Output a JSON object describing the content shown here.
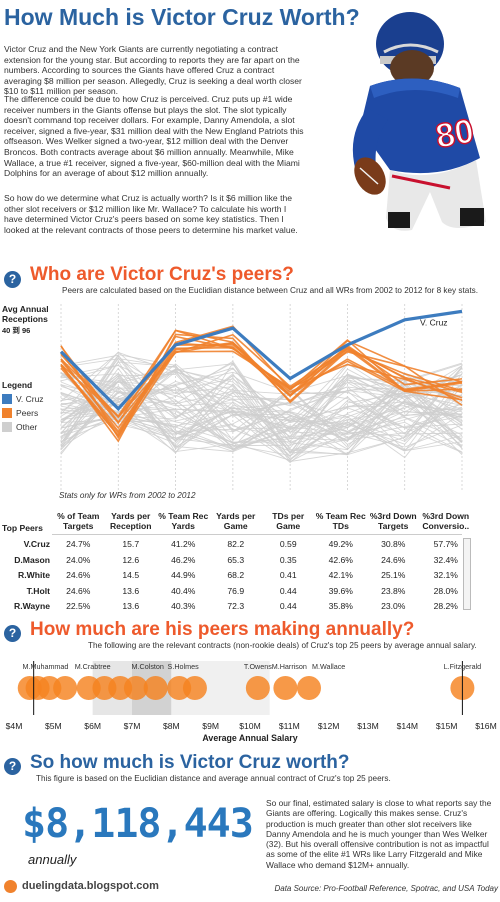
{
  "header": {
    "title": "How Much is Victor Cruz Worth?",
    "para1": "Victor Cruz and the New York Giants are currently negotiating a contract extension for the young star. But according to reports they are far apart on the numbers. According to sources the Giants have offered Cruz a contract averaging $8 million per season. Allegedly, Cruz is seeking a deal worth closer $10 to $11 million per season.",
    "para2": "The difference could be due to how Cruz is perceived. Cruz puts up #1 wide receiver numbers in the Giants offense but plays the slot. The slot typically doesn't command top receiver dollars. For example, Danny Amendola, a slot receiver, signed a five-year, $31 million deal with the New England Patriots this offseason. Wes Welker signed a two-year, $12 million deal with the Denver Broncos. Both contracts average about $6 million annually.  Meanwhile, Mike Wallace, a true #1 receiver, signed a five-year, $60-million deal with the Miami Dolphins for an average of about $12 million annually.",
    "para3": "So how do we determine what Cruz is actually worth? Is it $6 million like the other slot receivers or $12 million like Mr. Wallace? To calculate his worth I have determined Victor Cruz's peers based on some key statistics. Then I looked at the relevant contracts of those peers to determine his market value.",
    "jersey_number": "80"
  },
  "section1": {
    "icon": "?",
    "title": "Who are Victor Cruz's peers?",
    "subtitle": "Peers are calculated based on the Euclidian distance between Cruz and all WRs from 2002 to 2012 for 8 key stats.",
    "ylabel": "Avg Annual Receptions",
    "ylabel_sub": "40 到 96",
    "legend_title": "Legend",
    "note": "Stats only for WRs from 2002 to 2012",
    "cruz_label": "V. Cruz"
  },
  "chart_data": [
    {
      "type": "line",
      "x": [
        "% of Team Targets",
        "Yards per Reception",
        "% Team Rec Yards",
        "Yards per Game",
        "TDs per Game",
        "% Team Rec TDs",
        "%3rd Down Targets",
        "%3rd Down Conversions"
      ],
      "series": [
        {
          "name": "V. Cruz",
          "color": "#3d7cbf",
          "values": [
            0.74,
            0.4,
            0.78,
            0.88,
            0.58,
            0.78,
            0.93,
            0.98
          ]
        },
        {
          "name": "Peers",
          "color": "#f0822d",
          "values": [
            0.7,
            0.28,
            0.8,
            0.82,
            0.48,
            0.74,
            0.58,
            0.5
          ]
        },
        {
          "name": "Other",
          "color": "#cfcfcf",
          "values": [
            0.4,
            0.45,
            0.4,
            0.42,
            0.25,
            0.4,
            0.38,
            0.4
          ]
        }
      ]
    },
    {
      "type": "table",
      "columns": [
        "% of Team Targets",
        "Yards per Reception",
        "% Team Rec Yards",
        "Yards per Game",
        "TDs per Game",
        "% Team Rec TDs",
        "%3rd Down Targets",
        "%3rd Down Conversio.."
      ],
      "row_header": "Top Peers",
      "rows": [
        {
          "name": "V.Cruz",
          "values": [
            "24.7%",
            "15.7",
            "41.2%",
            "82.2",
            "0.59",
            "49.2%",
            "30.8%",
            "57.7%"
          ]
        },
        {
          "name": "D.Mason",
          "values": [
            "24.0%",
            "12.6",
            "46.2%",
            "65.3",
            "0.35",
            "42.6%",
            "24.6%",
            "32.4%"
          ]
        },
        {
          "name": "R.White",
          "values": [
            "24.6%",
            "14.5",
            "44.9%",
            "68.2",
            "0.41",
            "42.1%",
            "25.1%",
            "32.1%"
          ]
        },
        {
          "name": "T.Holt",
          "values": [
            "24.6%",
            "13.6",
            "40.4%",
            "76.9",
            "0.44",
            "39.6%",
            "23.8%",
            "28.0%"
          ]
        },
        {
          "name": "R.Wayne",
          "values": [
            "22.5%",
            "13.6",
            "40.3%",
            "72.3",
            "0.44",
            "35.8%",
            "23.0%",
            "28.2%"
          ]
        }
      ]
    },
    {
      "type": "scatter",
      "title": "How much are his peers making annually?",
      "xlabel": "Average Annual Salary",
      "xlim": [
        4,
        16
      ],
      "x_ticks": [
        "$4M",
        "$5M",
        "$6M",
        "$7M",
        "$8M",
        "$9M",
        "$10M",
        "$11M",
        "$12M",
        "$13M",
        "$14M",
        "$15M",
        "$16M"
      ],
      "points": [
        4.4,
        4.6,
        4.9,
        5.3,
        5.9,
        6.3,
        6.7,
        7.1,
        7.6,
        8.2,
        8.6,
        10.2,
        10.9,
        11.5,
        15.4
      ],
      "labels": [
        {
          "text": "M.Muhammad",
          "x": 4.8
        },
        {
          "text": "M.Crabtree",
          "x": 6.0
        },
        {
          "text": "M.Colston",
          "x": 7.4
        },
        {
          "text": "S.Holmes",
          "x": 8.3
        },
        {
          "text": "T.Owens",
          "x": 10.2
        },
        {
          "text": "M.Harrison",
          "x": 11.0
        },
        {
          "text": "M.Wallace",
          "x": 12.0
        },
        {
          "text": "L.Fitzgerald",
          "x": 15.4
        }
      ],
      "markers": [
        4.5,
        15.4
      ]
    }
  ],
  "section2": {
    "icon": "?",
    "title": "How much are his peers making annually?",
    "subtitle": "The following are the relevant contracts (non-rookie deals) of Cruz's top 25 peers by average annual salary."
  },
  "section3": {
    "icon": "?",
    "title": "So how much is Victor Cruz worth?",
    "subtitle": "This figure is based on the Euclidian distance and average annual contract of Cruz's top 25 peers.",
    "value": "$8,118,443",
    "value_sub": "annually",
    "body": "So our final, estimated salary is close to what reports say the Giants are offering. Logically this makes sense. Cruz's production is much greater than other slot receivers like Danny Amendola and he is much younger than Wes Welker (32). But his overall offensive contribution is not as impactful as some of the elite #1 WRs like Larry Fitzgerald and Mike Wallace who demand $12M+ annually."
  },
  "footer": {
    "logo": "duelingdata.blogspot.com",
    "source": "Data Source: Pro-Football Reference, Spotrac, and USA Today"
  }
}
